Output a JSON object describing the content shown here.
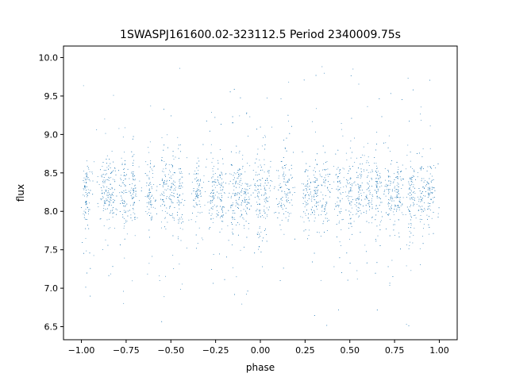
{
  "chart_data": {
    "type": "scatter",
    "title": "1SWASPJ161600.02-323112.5 Period 2340009.75s",
    "xlabel": "phase",
    "ylabel": "flux",
    "xlim": [
      -1.1,
      1.1
    ],
    "ylim": [
      6.33,
      10.15
    ],
    "xticks": [
      -1.0,
      -0.75,
      -0.5,
      -0.25,
      0.0,
      0.25,
      0.5,
      0.75,
      1.0
    ],
    "xtick_labels": [
      "−1.00",
      "−0.75",
      "−0.50",
      "−0.25",
      "0.00",
      "0.25",
      "0.50",
      "0.75",
      "1.00"
    ],
    "yticks": [
      6.5,
      7.0,
      7.5,
      8.0,
      8.5,
      9.0,
      9.5,
      10.0
    ],
    "ytick_labels": [
      "6.5",
      "7.0",
      "7.5",
      "8.0",
      "8.5",
      "9.0",
      "9.5",
      "10.0"
    ],
    "grid": false,
    "marker_color": "#1f77b4",
    "x_range_data": [
      -1.0,
      1.0
    ],
    "y_typical": [
      7.8,
      8.7
    ],
    "y_extent": [
      6.5,
      10.0
    ],
    "columns_x": [
      -0.97,
      -0.87,
      -0.83,
      -0.76,
      -0.71,
      -0.62,
      -0.54,
      -0.5,
      -0.45,
      -0.35,
      -0.27,
      -0.22,
      -0.16,
      -0.12,
      -0.08,
      -0.01,
      0.03,
      0.12,
      0.16,
      0.26,
      0.31,
      0.36,
      0.44,
      0.5,
      0.55,
      0.6,
      0.65,
      0.72,
      0.77,
      0.84,
      0.9,
      0.95
    ]
  }
}
